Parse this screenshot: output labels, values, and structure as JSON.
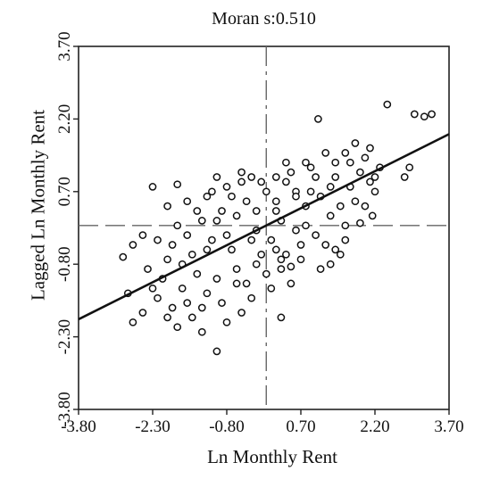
{
  "chart_data": {
    "type": "scatter",
    "title": "Moran s:0.510",
    "xlabel": "Ln Monthly Rent",
    "ylabel": "Lagged Ln Monthly Rent",
    "xlim": [
      -3.8,
      3.7
    ],
    "ylim": [
      -3.8,
      3.7
    ],
    "xticks": [
      -3.8,
      -2.3,
      -0.8,
      0.7,
      2.2,
      3.7
    ],
    "yticks": [
      -3.8,
      -2.3,
      -0.8,
      0.7,
      2.2,
      3.7
    ],
    "xtick_labels": [
      "-3.80",
      "-2.30",
      "-0.80",
      "0.70",
      "2.20",
      "3.70"
    ],
    "ytick_labels": [
      "-3.80",
      "-2.30",
      "-0.80",
      "0.70",
      "2.20",
      "3.70"
    ],
    "reference_lines": {
      "x": 0.0,
      "y": 0.0,
      "style": "dashed"
    },
    "regression_line": {
      "slope": 0.51,
      "intercept": 0.0
    },
    "grid": false,
    "series": [
      {
        "points": [
          [
            3.0,
            2.3
          ],
          [
            3.2,
            2.25
          ],
          [
            3.35,
            2.3
          ],
          [
            1.05,
            2.2
          ],
          [
            2.45,
            2.5
          ],
          [
            2.8,
            1.0
          ],
          [
            2.9,
            1.2
          ],
          [
            1.8,
            1.7
          ],
          [
            1.6,
            1.5
          ],
          [
            2.0,
            1.4
          ],
          [
            2.3,
            1.2
          ],
          [
            2.1,
            0.9
          ],
          [
            2.2,
            0.7
          ],
          [
            2.0,
            0.4
          ],
          [
            2.15,
            0.2
          ],
          [
            1.9,
            0.05
          ],
          [
            1.6,
            -0.3
          ],
          [
            1.5,
            -0.6
          ],
          [
            1.3,
            -0.8
          ],
          [
            0.5,
            -0.85
          ],
          [
            0.3,
            -0.9
          ],
          [
            0.1,
            -1.3
          ],
          [
            0.6,
            0.7
          ],
          [
            0.4,
            0.9
          ],
          [
            0.2,
            1.0
          ],
          [
            -0.3,
            1.0
          ],
          [
            -0.5,
            0.9
          ],
          [
            -0.8,
            0.8
          ],
          [
            -1.2,
            0.6
          ],
          [
            -1.6,
            0.5
          ],
          [
            -2.0,
            0.4
          ],
          [
            -2.3,
            0.8
          ],
          [
            -1.8,
            0.85
          ],
          [
            -2.5,
            -0.2
          ],
          [
            -2.7,
            -0.4
          ],
          [
            -2.9,
            -0.65
          ],
          [
            -2.8,
            -1.4
          ],
          [
            -2.7,
            -2.0
          ],
          [
            -2.5,
            -1.8
          ],
          [
            -2.2,
            -1.5
          ],
          [
            -1.9,
            -1.7
          ],
          [
            -1.8,
            -2.1
          ],
          [
            -1.5,
            -1.9
          ],
          [
            -1.3,
            -2.2
          ],
          [
            -1.0,
            -2.6
          ],
          [
            -0.8,
            -2.0
          ],
          [
            -0.5,
            -1.8
          ],
          [
            -0.3,
            -1.5
          ],
          [
            0.3,
            -1.9
          ],
          [
            0.5,
            -1.2
          ],
          [
            -1.1,
            -0.3
          ],
          [
            -0.7,
            -0.5
          ],
          [
            -0.2,
            -0.1
          ],
          [
            0.2,
            0.3
          ],
          [
            0.8,
            0.4
          ],
          [
            1.1,
            0.6
          ],
          [
            1.3,
            0.2
          ],
          [
            1.0,
            -0.2
          ],
          [
            0.7,
            -0.4
          ],
          [
            0.4,
            -0.6
          ],
          [
            -0.1,
            -0.6
          ],
          [
            -0.6,
            -0.9
          ],
          [
            -1.0,
            -1.1
          ],
          [
            -1.4,
            -1.0
          ],
          [
            -1.7,
            -0.8
          ],
          [
            -2.1,
            -1.1
          ],
          [
            -2.4,
            -0.9
          ],
          [
            -1.6,
            -0.2
          ],
          [
            -1.3,
            0.1
          ],
          [
            -0.9,
            0.3
          ],
          [
            -0.4,
            0.5
          ],
          [
            0.0,
            0.7
          ],
          [
            0.5,
            1.1
          ],
          [
            0.9,
            1.2
          ],
          [
            1.4,
            1.0
          ],
          [
            1.7,
            0.8
          ],
          [
            1.9,
            1.1
          ],
          [
            1.5,
            0.4
          ],
          [
            0.6,
            -0.1
          ],
          [
            0.1,
            -0.3
          ],
          [
            -0.3,
            -0.3
          ],
          [
            -0.8,
            -0.2
          ],
          [
            -1.2,
            -0.5
          ],
          [
            -1.5,
            -0.6
          ],
          [
            -1.9,
            -0.4
          ],
          [
            -2.2,
            -0.3
          ],
          [
            -1.0,
            0.1
          ],
          [
            -0.6,
            0.2
          ],
          [
            -0.2,
            0.3
          ],
          [
            0.3,
            0.1
          ],
          [
            0.8,
            0.0
          ],
          [
            1.2,
            -0.4
          ],
          [
            1.6,
            0.0
          ],
          [
            1.8,
            0.5
          ],
          [
            2.2,
            1.0
          ],
          [
            1.4,
            1.3
          ],
          [
            1.0,
            1.0
          ],
          [
            0.6,
            0.6
          ],
          [
            0.2,
            0.5
          ],
          [
            -0.1,
            0.9
          ],
          [
            -0.7,
            0.6
          ],
          [
            -1.1,
            0.7
          ],
          [
            -1.4,
            0.3
          ],
          [
            -1.8,
            0.0
          ],
          [
            -2.0,
            -0.7
          ],
          [
            -2.3,
            -1.3
          ],
          [
            -1.7,
            -1.3
          ],
          [
            -1.2,
            -1.4
          ],
          [
            -0.9,
            -1.6
          ],
          [
            -0.4,
            -1.2
          ],
          [
            0.0,
            -1.0
          ],
          [
            0.3,
            -0.7
          ],
          [
            0.7,
            -0.7
          ],
          [
            1.1,
            -0.9
          ],
          [
            1.4,
            -0.5
          ],
          [
            -0.6,
            -1.2
          ],
          [
            -1.3,
            -1.7
          ],
          [
            -2.0,
            -1.9
          ],
          [
            -1.6,
            -1.6
          ],
          [
            -0.2,
            -0.8
          ],
          [
            0.2,
            -0.5
          ],
          [
            0.9,
            0.7
          ],
          [
            1.3,
            0.8
          ],
          [
            1.7,
            1.3
          ],
          [
            2.1,
            1.6
          ],
          [
            1.2,
            1.5
          ],
          [
            0.8,
            1.3
          ],
          [
            0.4,
            1.3
          ],
          [
            -0.5,
            1.1
          ],
          [
            -1.0,
            1.0
          ]
        ]
      }
    ]
  }
}
